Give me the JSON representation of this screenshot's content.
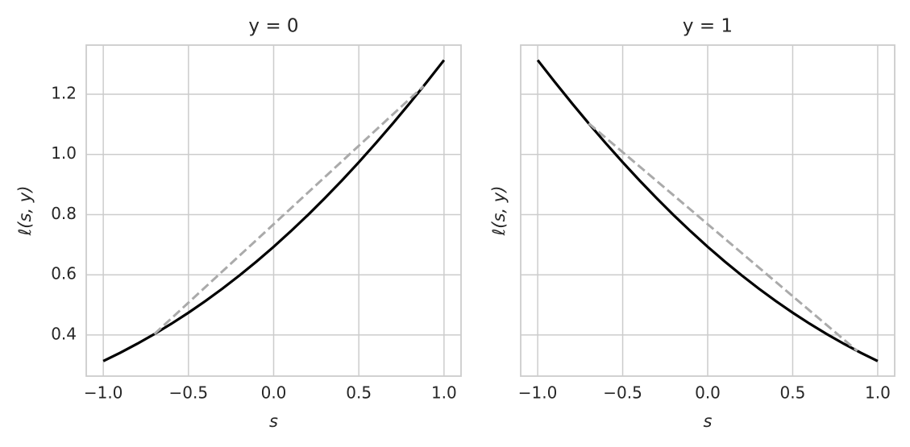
{
  "chart_data": [
    {
      "type": "line",
      "title": "y = 0",
      "xlabel": "s",
      "ylabel": "ℓ(s, y)",
      "x": [
        -1,
        -0.9,
        -0.8,
        -0.7,
        -0.6,
        -0.5,
        -0.4,
        -0.3,
        -0.2,
        -0.1,
        0,
        0.1,
        0.2,
        0.3,
        0.4,
        0.5,
        0.6,
        0.7,
        0.8,
        0.9,
        1
      ],
      "series": [
        {
          "color": "#000000",
          "style": "solid",
          "values": [
            0.3133,
            0.3412,
            0.3711,
            0.4032,
            0.4375,
            0.4741,
            0.513,
            0.5544,
            0.5981,
            0.6444,
            0.6931,
            0.7444,
            0.7981,
            0.8544,
            0.913,
            0.9741,
            1.0375,
            1.1032,
            1.1711,
            1.2412,
            1.3133
          ]
        },
        {
          "color": "#aaaaaa",
          "style": "dashed",
          "x": [
            -0.7,
            0.88
          ],
          "values": [
            0.4032,
            1.227
          ]
        }
      ],
      "xlim": [
        -1.1,
        1.1
      ],
      "ylim": [
        0.2633,
        1.3633
      ],
      "xticks": [
        {
          "value": -1,
          "label": "−1.0"
        },
        {
          "value": -0.5,
          "label": "−0.5"
        },
        {
          "value": 0,
          "label": "0.0"
        },
        0.5,
        {
          "value": 1,
          "label": "1.0"
        }
      ],
      "yticks": [
        0.4,
        0.6,
        0.8,
        {
          "value": 1,
          "label": "1.0"
        },
        1.2
      ],
      "show_ytick_labels": true,
      "grid": true
    },
    {
      "type": "line",
      "title": "y = 1",
      "xlabel": "s",
      "ylabel": "ℓ(s, y)",
      "x": [
        -1,
        -0.9,
        -0.8,
        -0.7,
        -0.6,
        -0.5,
        -0.4,
        -0.3,
        -0.2,
        -0.1,
        0,
        0.1,
        0.2,
        0.3,
        0.4,
        0.5,
        0.6,
        0.7,
        0.8,
        0.9,
        1
      ],
      "series": [
        {
          "color": "#000000",
          "style": "solid",
          "values": [
            1.3133,
            1.2412,
            1.1711,
            1.1032,
            1.0375,
            0.9741,
            0.913,
            0.8544,
            0.7981,
            0.7444,
            0.6931,
            0.6444,
            0.5981,
            0.5544,
            0.513,
            0.4741,
            0.4375,
            0.4032,
            0.3711,
            0.3412,
            0.3133
          ]
        },
        {
          "color": "#aaaaaa",
          "style": "dashed",
          "x": [
            -0.7,
            0.88
          ],
          "values": [
            1.1032,
            0.347
          ]
        }
      ],
      "xlim": [
        -1.1,
        1.1
      ],
      "ylim": [
        0.2633,
        1.3633
      ],
      "xticks": [
        {
          "value": -1,
          "label": "−1.0"
        },
        {
          "value": -0.5,
          "label": "−0.5"
        },
        {
          "value": 0,
          "label": "0.0"
        },
        0.5,
        {
          "value": 1,
          "label": "1.0"
        }
      ],
      "yticks": [
        0.4,
        0.6,
        0.8,
        1,
        1.2
      ],
      "show_ytick_labels": false,
      "grid": true
    }
  ]
}
